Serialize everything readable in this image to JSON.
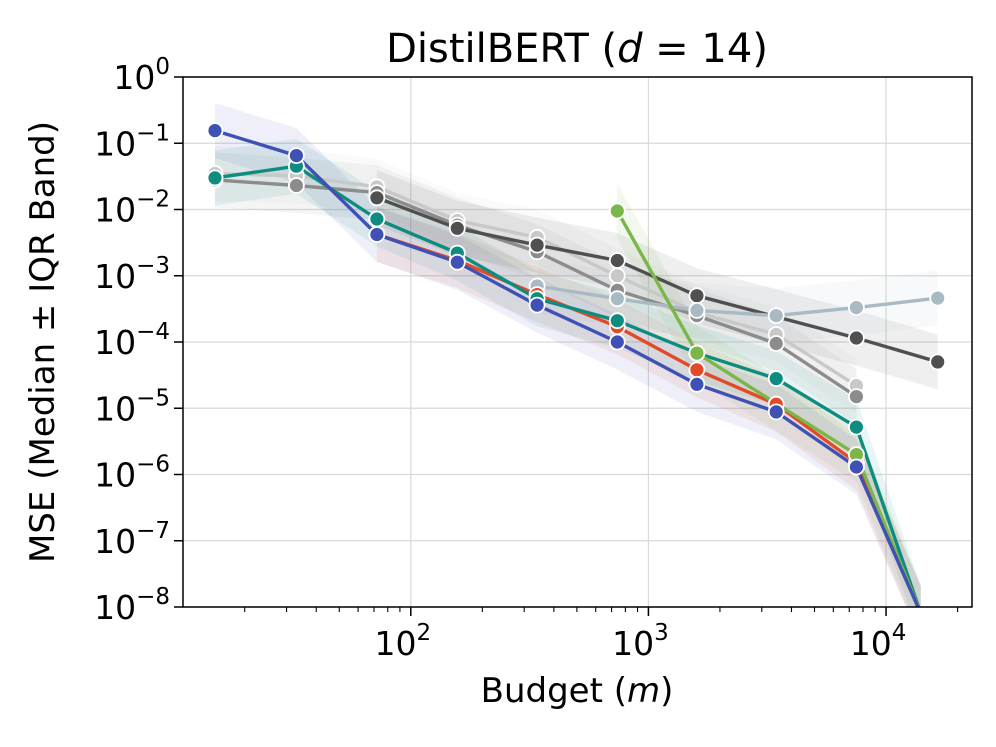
{
  "chart_data": {
    "type": "line",
    "title_prefix": "DistilBERT (",
    "title_var": "d",
    "title_suffix": " = 14)",
    "xlabel_prefix": "Budget (",
    "xlabel_var": "m",
    "xlabel_suffix": ")",
    "ylabel": "MSE (Median ± IQR Band)",
    "x_scale": "log",
    "y_scale": "log",
    "xlim": [
      11,
      23000
    ],
    "ylim": [
      1e-08,
      1
    ],
    "x_ticks": [
      {
        "value": 100,
        "base": "10",
        "exp": "2"
      },
      {
        "value": 1000,
        "base": "10",
        "exp": "3"
      },
      {
        "value": 10000,
        "base": "10",
        "exp": "4"
      }
    ],
    "y_ticks": [
      {
        "value": 1,
        "base": "10",
        "exp": "0"
      },
      {
        "value": 0.1,
        "base": "10",
        "exp": "−1"
      },
      {
        "value": 0.01,
        "base": "10",
        "exp": "−2"
      },
      {
        "value": 0.001,
        "base": "10",
        "exp": "−3"
      },
      {
        "value": 0.0001,
        "base": "10",
        "exp": "−4"
      },
      {
        "value": 1e-05,
        "base": "10",
        "exp": "−5"
      },
      {
        "value": 1e-06,
        "base": "10",
        "exp": "−6"
      },
      {
        "value": 1e-07,
        "base": "10",
        "exp": "−7"
      },
      {
        "value": 1e-08,
        "base": "10",
        "exp": "−8"
      }
    ],
    "grid": true,
    "series": [
      {
        "name": "gray-light-a",
        "color": "#c8c8c8",
        "x": [
          15,
          33,
          72,
          157,
          340,
          740,
          1600,
          3450,
          7500
        ],
        "y": [
          0.035,
          0.032,
          0.022,
          0.0068,
          0.0038,
          0.001,
          0.00028,
          0.00013,
          2.2e-05
        ]
      },
      {
        "name": "gray-mid",
        "color": "#8c8c8c",
        "x": [
          15,
          33,
          72,
          157,
          340,
          740,
          1600,
          3450,
          7500
        ],
        "y": [
          0.028,
          0.023,
          0.018,
          0.0058,
          0.0023,
          0.0006,
          0.00025,
          9.5e-05,
          1.5e-05
        ]
      },
      {
        "name": "gray-dark",
        "color": "#505050",
        "x": [
          72,
          157,
          340,
          740,
          1600,
          7500,
          16500
        ],
        "y": [
          0.015,
          0.0052,
          0.0029,
          0.0017,
          0.0005,
          0.000115,
          5e-05
        ]
      },
      {
        "name": "blue-gray",
        "color": "#a9bac3",
        "x": [
          340,
          740,
          1600,
          3450,
          7500,
          16500
        ],
        "y": [
          0.0007,
          0.00045,
          0.0003,
          0.00025,
          0.00033,
          0.00046
        ]
      },
      {
        "name": "orange",
        "color": "#e34a27",
        "x": [
          72,
          157,
          340,
          740,
          1600,
          3450,
          7500,
          14000
        ],
        "y": [
          0.0042,
          0.0017,
          0.00052,
          0.00017,
          3.8e-05,
          1.15e-05,
          1.5e-06,
          8e-09
        ]
      },
      {
        "name": "teal",
        "color": "#0e8c80",
        "x": [
          15,
          33,
          72,
          157,
          340,
          740,
          1600,
          3450,
          7500,
          14000
        ],
        "y": [
          0.03,
          0.045,
          0.0072,
          0.0022,
          0.00045,
          0.00021,
          6.8e-05,
          2.8e-05,
          5.2e-06,
          8e-09
        ]
      },
      {
        "name": "green",
        "color": "#7ab648",
        "x": [
          740,
          1600,
          7500,
          14000
        ],
        "y": [
          0.0095,
          6.8e-05,
          2e-06,
          8e-09
        ]
      },
      {
        "name": "blue",
        "color": "#3f51b5",
        "x": [
          15,
          33,
          72,
          157,
          340,
          740,
          1600,
          3450,
          7500,
          14000
        ],
        "y": [
          0.155,
          0.065,
          0.0042,
          0.0016,
          0.00036,
          0.0001,
          2.3e-05,
          8.8e-06,
          1.3e-06,
          8e-09
        ]
      }
    ]
  }
}
